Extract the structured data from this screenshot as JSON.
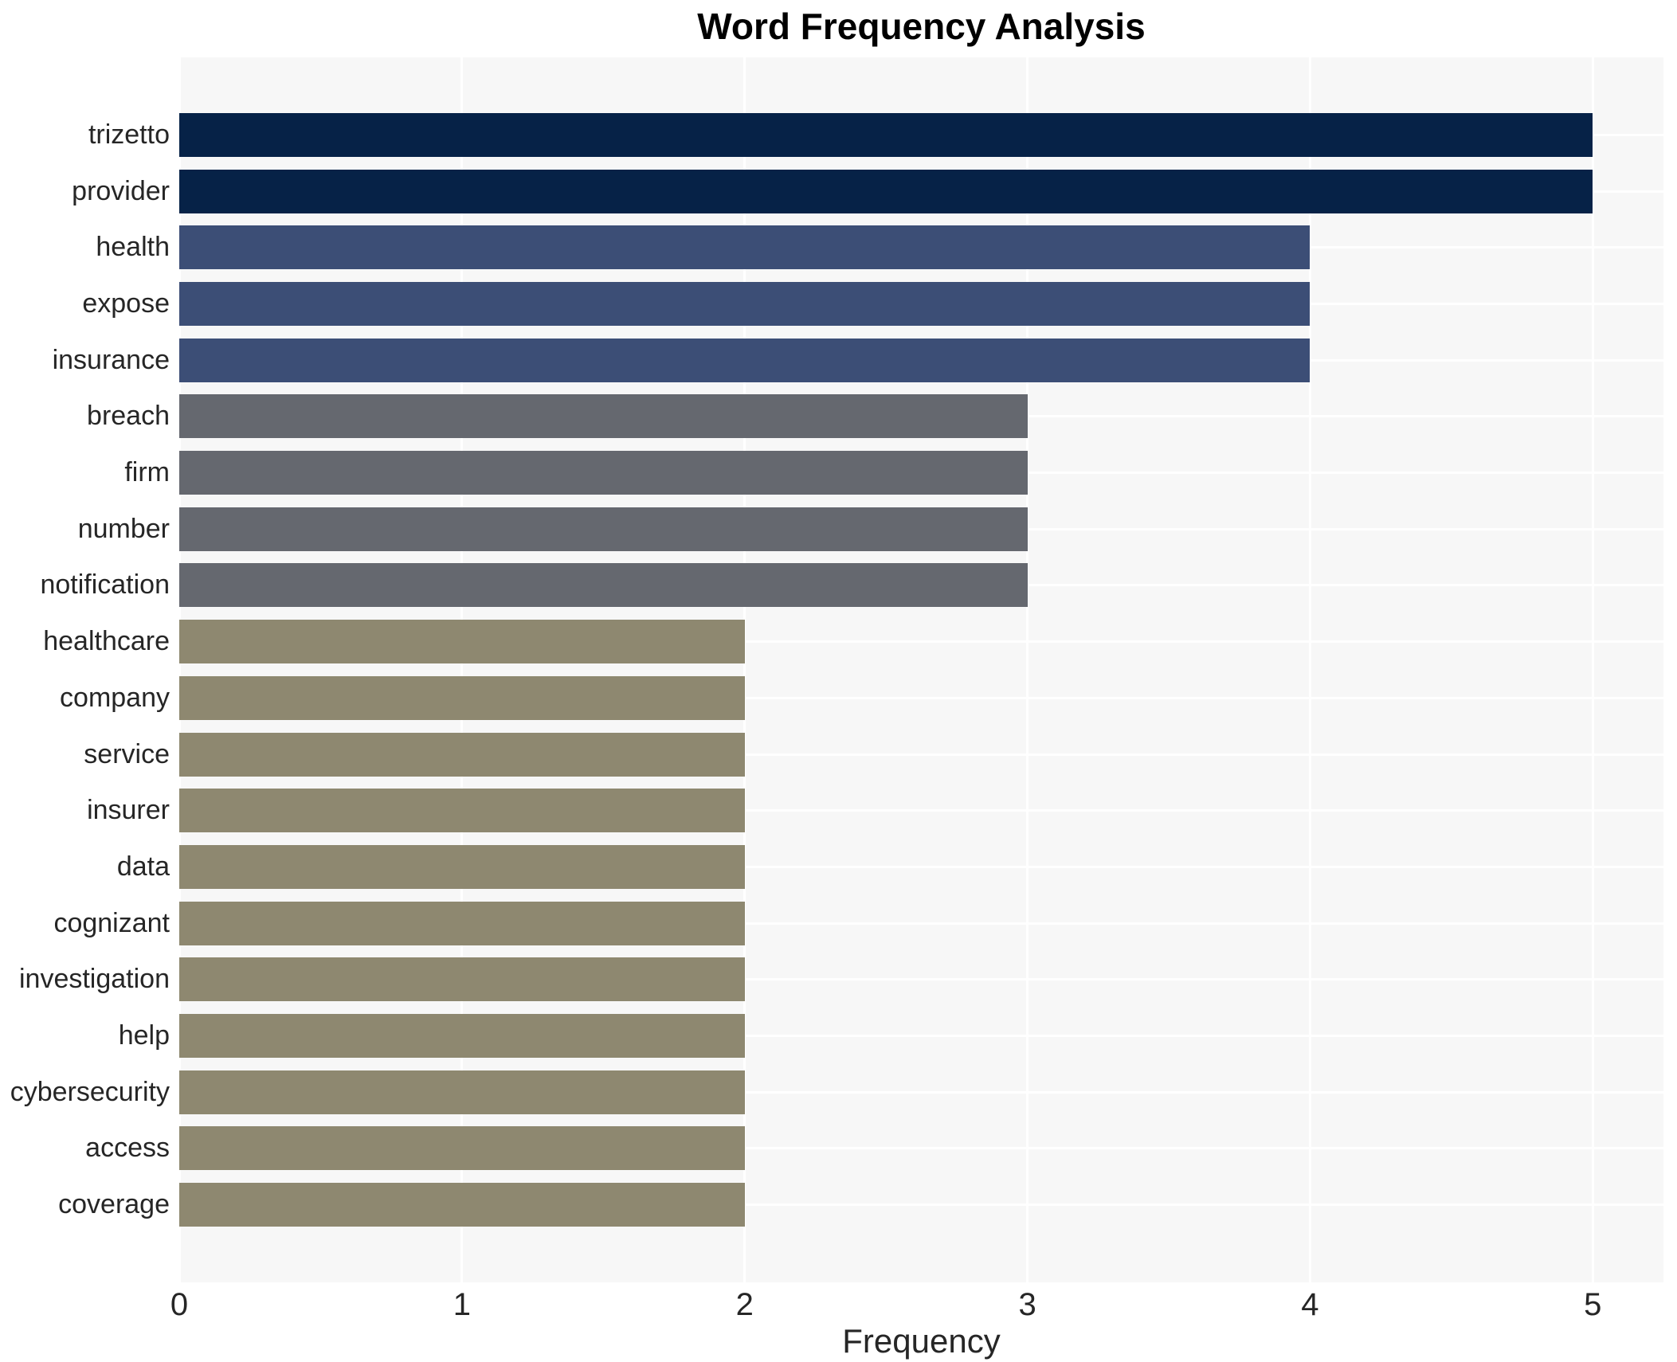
{
  "title": "Word Frequency Analysis",
  "xlabel": "Frequency",
  "chart_data": {
    "type": "bar",
    "orientation": "horizontal",
    "title": "Word Frequency Analysis",
    "xlabel": "Frequency",
    "ylabel": "",
    "categories": [
      "trizetto",
      "provider",
      "health",
      "expose",
      "insurance",
      "breach",
      "firm",
      "number",
      "notification",
      "healthcare",
      "company",
      "service",
      "insurer",
      "data",
      "cognizant",
      "investigation",
      "help",
      "cybersecurity",
      "access",
      "coverage"
    ],
    "values": [
      5,
      5,
      4,
      4,
      4,
      3,
      3,
      3,
      3,
      2,
      2,
      2,
      2,
      2,
      2,
      2,
      2,
      2,
      2,
      2
    ],
    "xlim": [
      0,
      5.25
    ],
    "xticks": [
      0,
      1,
      2,
      3,
      4,
      5
    ],
    "grid": true,
    "legend": false,
    "plot_bg_color": "#f7f7f7",
    "grid_color": "#ffffff",
    "colors_by_value": {
      "5": "#062247",
      "4": "#3c4e76",
      "3": "#65686f",
      "2": "#8e8870"
    }
  }
}
